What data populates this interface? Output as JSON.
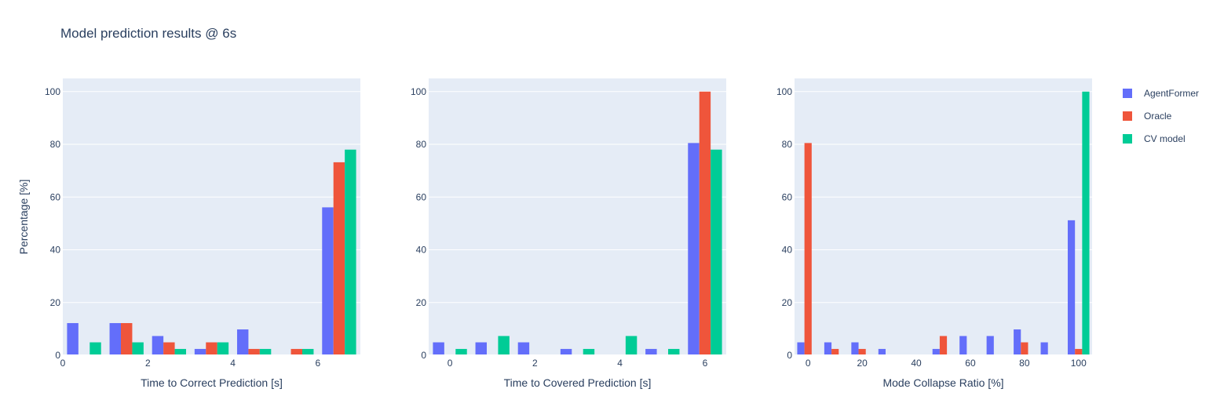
{
  "title": "Model prediction results @ 6s",
  "colors": {
    "AgentFormer": "#636efa",
    "Oracle": "#ef553b",
    "CV model": "#00cc96",
    "plot_bg": "#e5ecf6",
    "grid": "#ffffff",
    "text": "#2a3f5f"
  },
  "legend": {
    "items": [
      {
        "name": "AgentFormer",
        "color": "#636efa"
      },
      {
        "name": "Oracle",
        "color": "#ef553b"
      },
      {
        "name": "CV model",
        "color": "#00cc96"
      }
    ]
  },
  "chart_data": [
    {
      "type": "bar",
      "xlabel": "Time to Correct Prediction [s]",
      "ylabel": "Percentage [%]",
      "xlim": [
        0,
        7
      ],
      "ylim": [
        0,
        105
      ],
      "xticks": [
        0,
        2,
        4,
        6
      ],
      "yticks": [
        0,
        20,
        40,
        60,
        80,
        100
      ],
      "categories": [
        0.5,
        1.5,
        2.5,
        3.5,
        4.5,
        5.5,
        6.5
      ],
      "series": [
        {
          "name": "AgentFormer",
          "values": [
            12.2,
            12.2,
            7.3,
            2.4,
            9.8,
            0,
            56.1
          ]
        },
        {
          "name": "Oracle",
          "values": [
            0,
            12.2,
            4.9,
            4.9,
            2.4,
            2.4,
            73.2
          ]
        },
        {
          "name": "CV model",
          "values": [
            4.9,
            4.9,
            2.4,
            4.9,
            2.4,
            2.4,
            78.0
          ]
        }
      ]
    },
    {
      "type": "bar",
      "xlabel": "Time to Covered Prediction [s]",
      "ylabel": "",
      "xlim": [
        -0.5,
        6.5
      ],
      "ylim": [
        0,
        105
      ],
      "xticks": [
        0,
        2,
        4,
        6
      ],
      "yticks": [
        0,
        20,
        40,
        60,
        80,
        100
      ],
      "categories": [
        0,
        1,
        2,
        3,
        4,
        5,
        6
      ],
      "series": [
        {
          "name": "AgentFormer",
          "values": [
            4.9,
            4.9,
            4.9,
            2.4,
            0,
            2.4,
            80.5
          ]
        },
        {
          "name": "Oracle",
          "values": [
            0,
            0,
            0,
            0,
            0,
            0,
            100
          ]
        },
        {
          "name": "CV model",
          "values": [
            2.4,
            7.3,
            0,
            2.4,
            7.3,
            2.4,
            78.0
          ]
        }
      ]
    },
    {
      "type": "bar",
      "xlabel": "Mode Collapse Ratio [%]",
      "ylabel": "",
      "xlim": [
        -5,
        105
      ],
      "ylim": [
        0,
        105
      ],
      "xticks": [
        0,
        20,
        40,
        60,
        80,
        100
      ],
      "yticks": [
        0,
        20,
        40,
        60,
        80,
        100
      ],
      "categories": [
        0,
        10,
        20,
        30,
        40,
        50,
        60,
        70,
        80,
        90,
        100
      ],
      "series": [
        {
          "name": "AgentFormer",
          "values": [
            4.9,
            4.9,
            4.9,
            2.4,
            0,
            2.4,
            7.3,
            7.3,
            9.8,
            4.9,
            51.2
          ]
        },
        {
          "name": "Oracle",
          "values": [
            80.5,
            2.4,
            2.4,
            0,
            0,
            7.3,
            0,
            0,
            4.9,
            0,
            2.4
          ]
        },
        {
          "name": "CV model",
          "values": [
            0,
            0,
            0,
            0,
            0,
            0,
            0,
            0,
            0,
            0,
            100
          ]
        }
      ]
    }
  ]
}
